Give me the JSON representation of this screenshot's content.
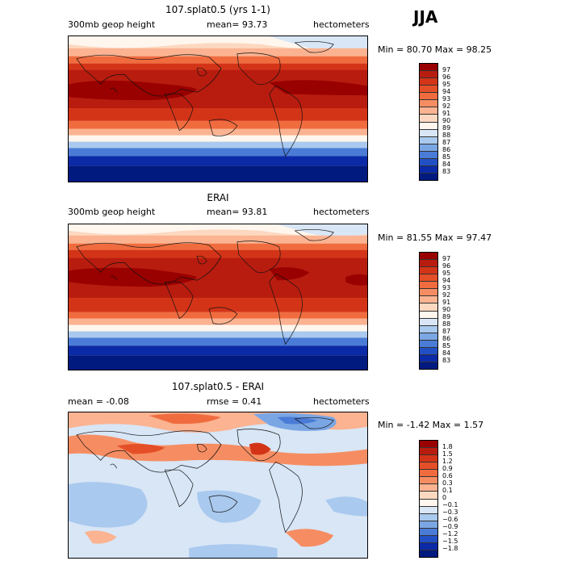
{
  "season": "JJA",
  "panels": [
    {
      "title": "107.splat0.5 (yrs 1-1)",
      "left_label": "300mb geop height",
      "center_label": "mean=   93.73",
      "right_label": "hectometers",
      "minmax": "Min =   80.70 Max =   98.25",
      "levels": [
        "97",
        "96",
        "95",
        "94",
        "93",
        "92",
        "91",
        "90",
        "89",
        "88",
        "87",
        "86",
        "85",
        "84",
        "83"
      ],
      "colors": [
        "#990000",
        "#b81c0f",
        "#d33417",
        "#e54f27",
        "#f06c3f",
        "#f68d62",
        "#fbb391",
        "#fcd8c0",
        "#fff6ee",
        "#d8e6f6",
        "#a9c9ee",
        "#7aa6e4",
        "#4a7bd6",
        "#2250c4",
        "#0b2aa8",
        "#001a80"
      ]
    },
    {
      "title": "ERAI",
      "left_label": "300mb geop height",
      "center_label": "mean=   93.81",
      "right_label": "hectometers",
      "minmax": "Min =   81.55 Max =   97.47",
      "levels": [
        "97",
        "96",
        "95",
        "94",
        "93",
        "92",
        "91",
        "90",
        "89",
        "88",
        "87",
        "86",
        "85",
        "84",
        "83"
      ],
      "colors": [
        "#990000",
        "#b81c0f",
        "#d33417",
        "#e54f27",
        "#f06c3f",
        "#f68d62",
        "#fbb391",
        "#fcd8c0",
        "#fff6ee",
        "#d8e6f6",
        "#a9c9ee",
        "#7aa6e4",
        "#4a7bd6",
        "#2250c4",
        "#0b2aa8",
        "#001a80"
      ]
    },
    {
      "title": "107.splat0.5 - ERAI",
      "left_label": "mean =   -0.08",
      "center_label": "rmse =    0.41",
      "right_label": "hectometers",
      "minmax": "Min =  -1.42 Max =    1.57",
      "levels": [
        "1.8",
        "1.5",
        "1.2",
        "0.9",
        "0.6",
        "0.3",
        "0.1",
        "0",
        "−0.1",
        "−0.3",
        "−0.6",
        "−0.9",
        "−1.2",
        "−1.5",
        "−1.8"
      ],
      "colors": [
        "#990000",
        "#b81c0f",
        "#d33417",
        "#e54f27",
        "#f06c3f",
        "#f68d62",
        "#fbb391",
        "#fcd8c0",
        "#fff6ee",
        "#d8e6f6",
        "#a9c9ee",
        "#7aa6e4",
        "#4a7bd6",
        "#2250c4",
        "#0b2aa8",
        "#001a80"
      ]
    }
  ]
}
